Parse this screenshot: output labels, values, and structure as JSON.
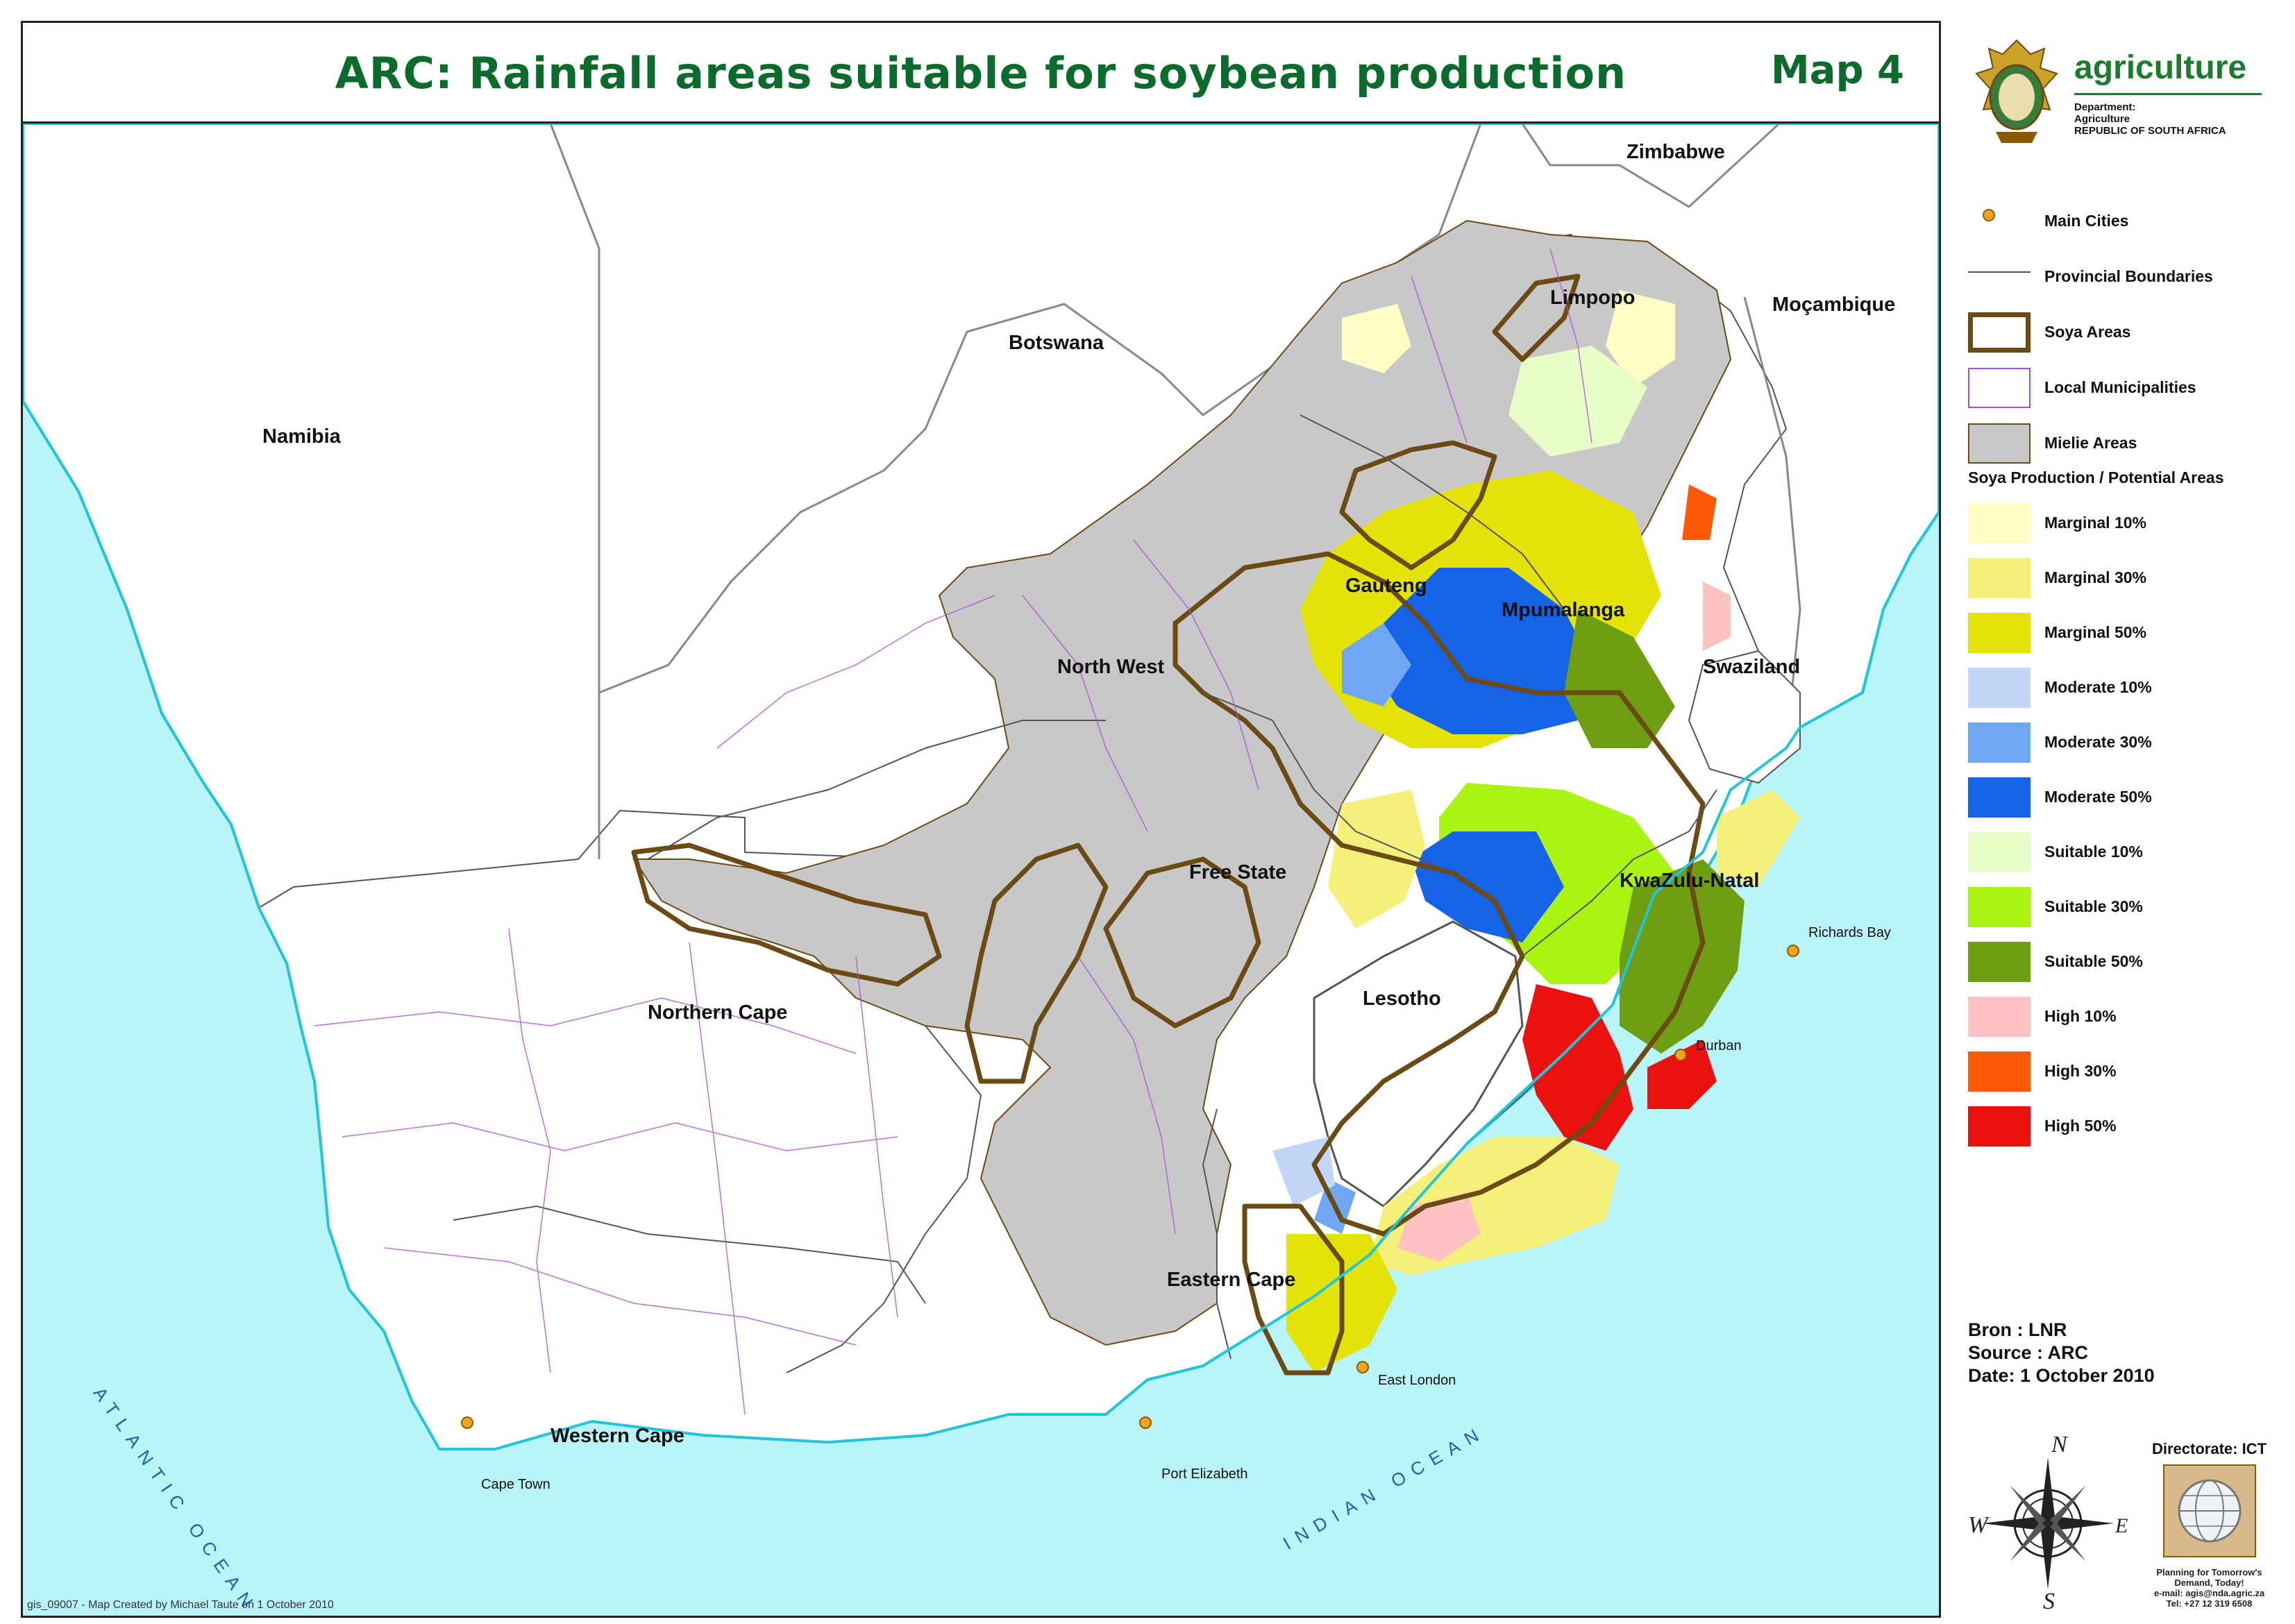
{
  "title": "ARC: Rainfall areas suitable for soybean production",
  "map_number": "Map 4",
  "countries": {
    "namibia": "Namibia",
    "botswana": "Botswana",
    "zimbabwe": "Zimbabwe",
    "mocambique": "Moçambique",
    "swaziland": "Swaziland",
    "lesotho": "Lesotho"
  },
  "provinces": {
    "limpopo": "Limpopo",
    "gauteng": "Gauteng",
    "mpumalanga": "Mpumalanga",
    "north_west": "North West",
    "free_state": "Free State",
    "kwazulu_natal": "KwaZulu-Natal",
    "northern_cape": "Northern Cape",
    "eastern_cape": "Eastern Cape",
    "western_cape": "Western Cape"
  },
  "cities": {
    "richards_bay": "Richards Bay",
    "durban": "Durban",
    "east_london": "East London",
    "port_elizabeth": "Port Elizabeth",
    "cape_town": "Cape Town"
  },
  "oceans": {
    "atlantic": "ATLANTIC OCEAN",
    "indian": "INDIAN OCEAN"
  },
  "credit": "gis_09007 - Map Created by Michael Taute on 1 October 2010",
  "header": {
    "brand": "agriculture",
    "dept_line1": "Department:",
    "dept_line2": "Agriculture",
    "dept_line3": "REPUBLIC OF SOUTH AFRICA"
  },
  "legend": {
    "items": [
      {
        "label": "Main Cities",
        "kind": "point"
      },
      {
        "label": "Provincial Boundaries",
        "kind": "line"
      },
      {
        "label": "Soya Areas",
        "kind": "outline"
      },
      {
        "label": "Local Municipalities",
        "kind": "municipal"
      },
      {
        "label": "Mielie Areas",
        "kind": "fill"
      }
    ],
    "soya_heading": "Soya Production / Potential Areas",
    "classes": [
      {
        "label": "Marginal 10%",
        "color": "#fefdc4"
      },
      {
        "label": "Marginal 30%",
        "color": "#f4f07a"
      },
      {
        "label": "Marginal 50%",
        "color": "#e3e30a"
      },
      {
        "label": "Moderate 10%",
        "color": "#c3d6f7"
      },
      {
        "label": "Moderate 30%",
        "color": "#6fa7f2"
      },
      {
        "label": "Moderate 50%",
        "color": "#1663e8"
      },
      {
        "label": "Suitable 10%",
        "color": "#e7fdc7"
      },
      {
        "label": "Suitable 30%",
        "color": "#a9f412"
      },
      {
        "label": "Suitable 50%",
        "color": "#6e9e11"
      },
      {
        "label": "High 10%",
        "color": "#fec2c2"
      },
      {
        "label": "High 30%",
        "color": "#ff5a0a"
      },
      {
        "label": "High 50%",
        "color": "#ec1111"
      }
    ]
  },
  "source": {
    "bron": "Bron : LNR",
    "source": "Source : ARC",
    "date": "Date: 1 October 2010"
  },
  "compass": {
    "n": "N",
    "s": "S",
    "e": "E",
    "w": "W"
  },
  "directorate": {
    "title": "Directorate: ICT",
    "tagline1": "Planning for Tomorrow's",
    "tagline2": "Demand, Today!",
    "email": "e-mail: agis@nda.agric.za",
    "tel": "Tel: +27 12 319 6508"
  },
  "colors": {
    "title_green": "#0b6b2c",
    "ocean": "#b9f4f9",
    "coast": "#23c5d9",
    "mielie": "#c8c8c8",
    "soya_outline": "#6b4a14",
    "municipal": "#a64fd6"
  }
}
